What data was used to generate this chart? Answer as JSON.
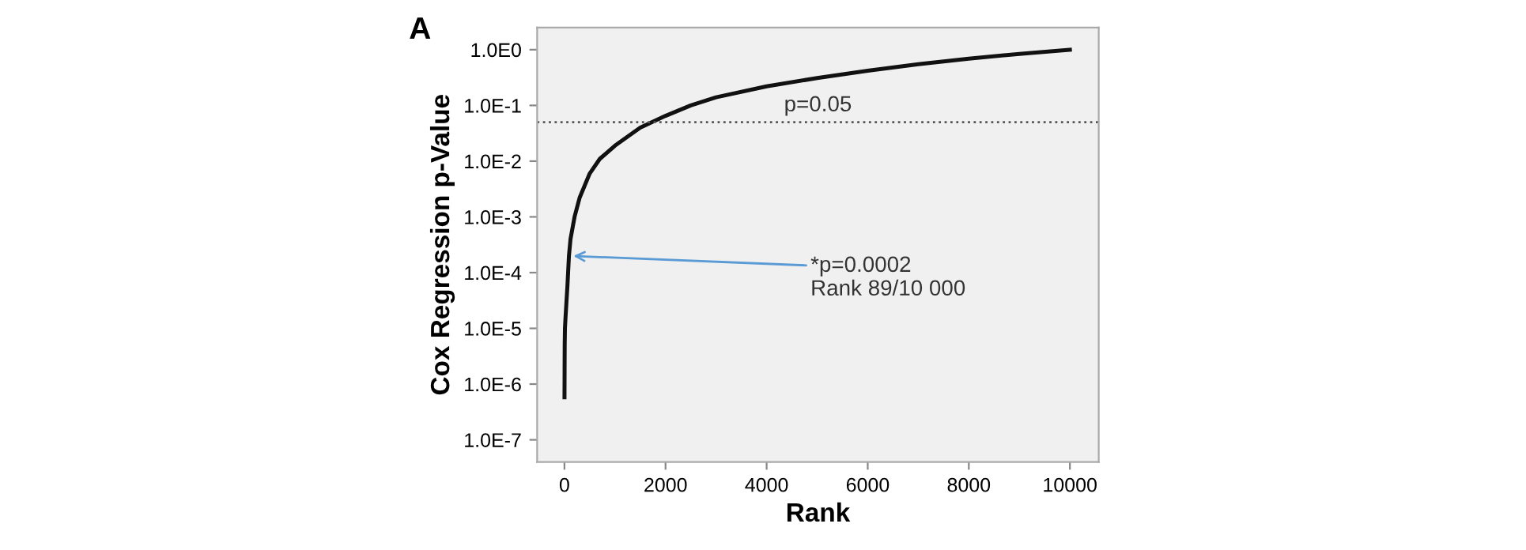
{
  "chart_data": {
    "type": "line",
    "title": "A",
    "xlabel": "Rank",
    "ylabel": "Cox Regression p-Value",
    "log": "y",
    "grid": false,
    "legend": false,
    "marker": "none",
    "line_style": "solid",
    "x": [
      1,
      2,
      3,
      5,
      10,
      20,
      40,
      60,
      89,
      120,
      200,
      300,
      500,
      700,
      1000,
      1500,
      2000,
      2500,
      3000,
      4000,
      5000,
      6000,
      7000,
      8000,
      9000,
      10000
    ],
    "series": [
      {
        "color": "#111111",
        "values": [
          5.8e-07,
          1e-06,
          1.8e-06,
          4.9e-06,
          1e-05,
          1.5e-05,
          3e-05,
          6e-05,
          0.0002,
          0.0004,
          0.001,
          0.0022,
          0.006,
          0.011,
          0.019,
          0.04,
          0.065,
          0.1,
          0.14,
          0.22,
          0.31,
          0.42,
          0.55,
          0.69,
          0.84,
          1.0
        ]
      }
    ],
    "xlim": [
      -540,
      10570
    ],
    "xticks": [
      0,
      2000,
      4000,
      6000,
      8000,
      10000
    ],
    "ylim": [
      4e-08,
      2.5
    ],
    "yticks": [
      {
        "value": 1e-07,
        "label": "1.0E-7"
      },
      {
        "value": 1e-06,
        "label": "1.0E-6"
      },
      {
        "value": 1e-05,
        "label": "1.0E-5"
      },
      {
        "value": 0.0001,
        "label": "1.0E-4"
      },
      {
        "value": 0.001,
        "label": "1.0E-3"
      },
      {
        "value": 0.01,
        "label": "1.0E-2"
      },
      {
        "value": 0.1,
        "label": "1.0E-1"
      },
      {
        "value": 1,
        "label": "1.0E0"
      }
    ],
    "ref_lines": [
      {
        "axis": "y",
        "value": 0.05,
        "label": "p=0.05",
        "color": "#555555",
        "line_style": "dotted"
      }
    ],
    "annotations": [
      {
        "text": "*p=0.0002\nRank 89/10 000",
        "x": 89,
        "y": 0.0002
      }
    ]
  }
}
